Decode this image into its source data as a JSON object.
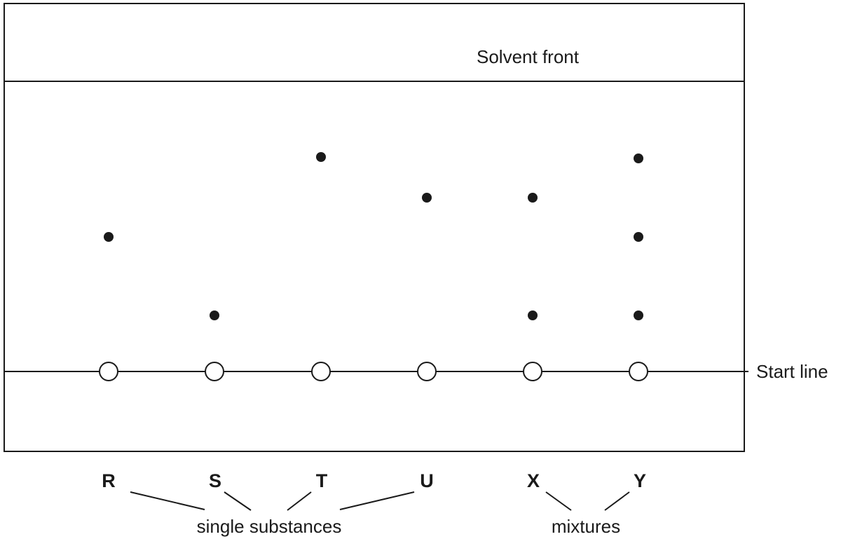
{
  "labels": {
    "solvent_front": "Solvent front",
    "start_line": "Start line",
    "single_substances": "single substances",
    "mixtures": "mixtures"
  },
  "lanes": [
    {
      "letter": "R",
      "spots": 1
    },
    {
      "letter": "S",
      "spots": 1
    },
    {
      "letter": "T",
      "spots": 1
    },
    {
      "letter": "U",
      "spots": 1
    },
    {
      "letter": "X",
      "spots": 2
    },
    {
      "letter": "Y",
      "spots": 3
    }
  ]
}
